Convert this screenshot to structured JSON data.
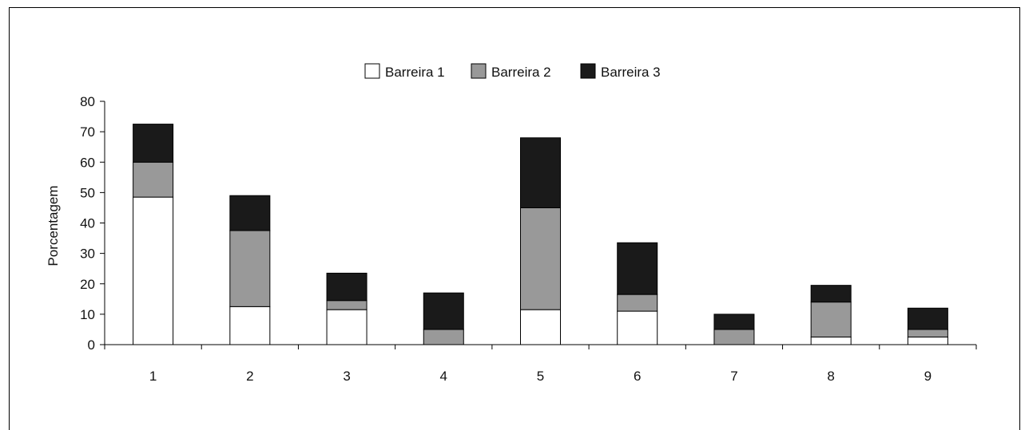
{
  "chart_data": {
    "type": "bar",
    "stacked": true,
    "categories": [
      "1",
      "2",
      "3",
      "4",
      "5",
      "6",
      "7",
      "8",
      "9"
    ],
    "series": [
      {
        "name": "Barreira 1",
        "color": "#ffffff",
        "values": [
          48.5,
          12.5,
          11.5,
          0,
          11.5,
          11,
          0,
          2.5,
          2.5
        ]
      },
      {
        "name": "Barreira 2",
        "color": "#999999",
        "values": [
          11.5,
          25,
          3,
          5,
          33.5,
          5.5,
          5,
          11.5,
          2.5
        ]
      },
      {
        "name": "Barreira 3",
        "color": "#1a1a1a",
        "values": [
          12.5,
          11.5,
          9,
          12,
          23,
          17,
          5,
          5.5,
          7
        ]
      }
    ],
    "ylabel": "Porcentagem",
    "xlabel": "",
    "ylim": [
      0,
      80
    ],
    "yticks": [
      0,
      10,
      20,
      30,
      40,
      50,
      60,
      70,
      80
    ],
    "legend_position": "top-center",
    "grid": false
  }
}
